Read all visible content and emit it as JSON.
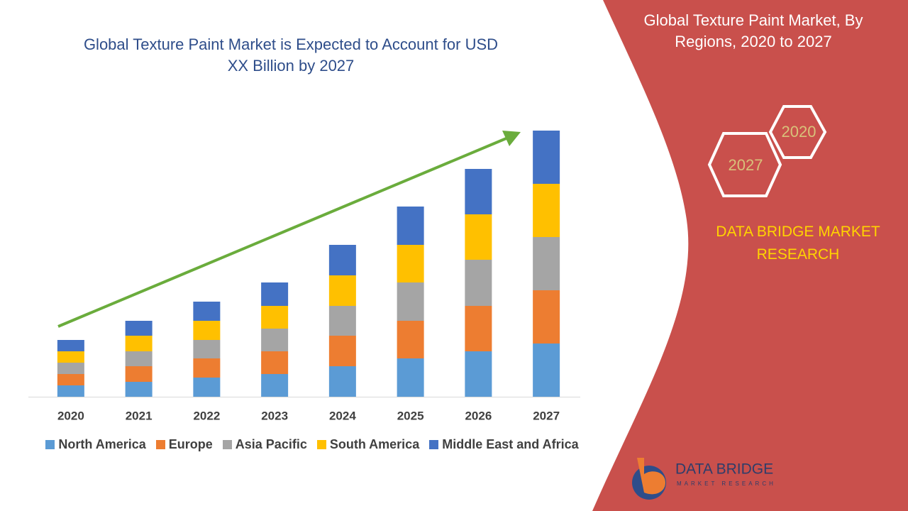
{
  "chart_data": {
    "type": "bar",
    "stacked": true,
    "title": "Global Texture Paint Market is Expected to Account for USD XX Billion by 2027",
    "categories": [
      "2020",
      "2021",
      "2022",
      "2023",
      "2024",
      "2025",
      "2026",
      "2027"
    ],
    "series": [
      {
        "name": "North America",
        "color": "#5b9bd5",
        "values": [
          16,
          21,
          27,
          32,
          43,
          54,
          64,
          75
        ]
      },
      {
        "name": "Europe",
        "color": "#ed7d31",
        "values": [
          16,
          22,
          27,
          32,
          43,
          53,
          64,
          75
        ]
      },
      {
        "name": "Asia Pacific",
        "color": "#a5a5a5",
        "values": [
          16,
          21,
          26,
          32,
          42,
          54,
          65,
          75
        ]
      },
      {
        "name": "South America",
        "color": "#ffc000",
        "values": [
          16,
          22,
          27,
          32,
          43,
          53,
          64,
          75
        ]
      },
      {
        "name": "Middle East and Africa",
        "color": "#4472c4",
        "values": [
          16,
          21,
          27,
          33,
          43,
          54,
          64,
          75
        ]
      }
    ],
    "ylim": [
      0,
      375
    ]
  },
  "side_panel": {
    "title": "Global Texture Paint Market, By Regions, 2020 to 2027",
    "hexagons": [
      "2020",
      "2027"
    ],
    "brand": "DATA BRIDGE MARKET RESEARCH",
    "logo": {
      "name": "DATA BRIDGE",
      "tagline": "MARKET RESEARCH"
    }
  }
}
